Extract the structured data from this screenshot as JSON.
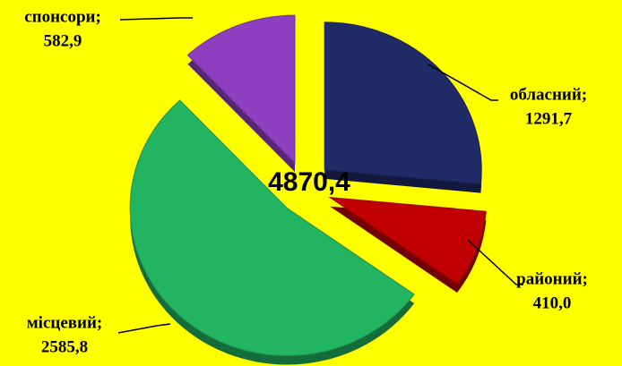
{
  "chart_data": {
    "type": "pie",
    "categories": [
      "обласний;",
      "районий;",
      "місцевий;",
      "спонсори;"
    ],
    "values": [
      1291.7,
      410.0,
      2585.8,
      582.9
    ],
    "value_labels": [
      "1291,7",
      "410,0",
      "2585,8",
      "582,9"
    ],
    "colors": [
      "#1f2a66",
      "#c00000",
      "#22b460",
      "#8e3fc0"
    ],
    "center_label": "4870,4",
    "background": "#ffff00"
  }
}
